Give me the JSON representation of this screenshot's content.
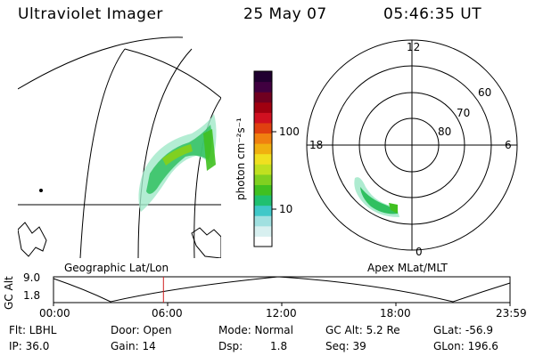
{
  "header": {
    "instrument": "Ultraviolet Imager",
    "date": "25 May 07",
    "time": "05:46:35 UT"
  },
  "colorbar": {
    "label": "photon cm⁻²s⁻¹",
    "ticks": [
      "100",
      "10"
    ],
    "colors": [
      "#ffffff",
      "#d8f0f0",
      "#a0e0e0",
      "#40c8c8",
      "#20c070",
      "#40c020",
      "#80d020",
      "#c0e020",
      "#f0e020",
      "#f0b010",
      "#f08010",
      "#e04010",
      "#d01020",
      "#a00010",
      "#700020",
      "#400040",
      "#200030"
    ]
  },
  "polar": {
    "hours": [
      "12",
      "18",
      "6",
      "0"
    ],
    "lats": [
      "60",
      "70",
      "80"
    ]
  },
  "labels": {
    "left_panel": "Geographic Lat/Lon",
    "right_panel": "Apex MLat/MLT"
  },
  "altitude": {
    "axis_label": "GC Alt",
    "y_ticks": [
      "9.0",
      "1.8"
    ],
    "x_ticks": [
      "00:00",
      "06:00",
      "12:00",
      "18:00",
      "23:59"
    ],
    "current_hour": 5.78
  },
  "info": {
    "filter": "Flt: LBHL",
    "door": "Door: Open",
    "mode": "Mode: Normal",
    "gc_alt": "GC Alt: 5.2 Re",
    "glat": "GLat: -56.9",
    "ip": "IP: 36.0",
    "gain": "Gain: 14",
    "dsp_label": "Dsp:",
    "dsp_value": "1.8",
    "seq": "Seq: 39",
    "glon": "GLon: 196.6"
  },
  "colors": {
    "marker": "#d02020",
    "aurora_main": "#30c060",
    "aurora_light": "#a0e8c8"
  }
}
